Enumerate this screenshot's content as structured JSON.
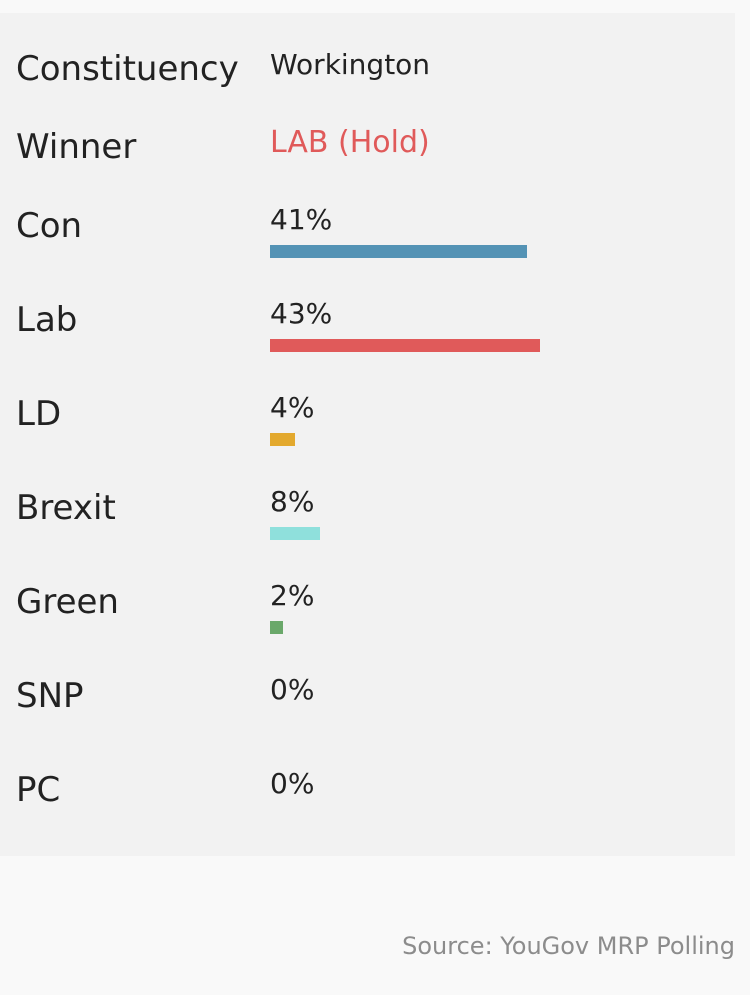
{
  "constituency": {
    "label": "Constituency",
    "value": "Workington"
  },
  "winner": {
    "label": "Winner",
    "value": "LAB (Hold)",
    "color": "#e05a5a"
  },
  "source": "Source: YouGov MRP Polling",
  "chart_data": {
    "type": "bar",
    "orientation": "horizontal",
    "categories": [
      "Con",
      "Lab",
      "LD",
      "Brexit",
      "Green",
      "SNP",
      "PC"
    ],
    "values": [
      41,
      43,
      4,
      8,
      2,
      0,
      0
    ],
    "value_labels": [
      "41%",
      "43%",
      "4%",
      "8%",
      "2%",
      "0%",
      "0%"
    ],
    "unit": "%",
    "colors": [
      "#5493b5",
      "#e05a5a",
      "#e3a92e",
      "#8fe0dc",
      "#6aa86a",
      "#f0d540",
      "#3f8f3f"
    ],
    "xlim": [
      0,
      100
    ],
    "grid": false,
    "legend": "none"
  }
}
